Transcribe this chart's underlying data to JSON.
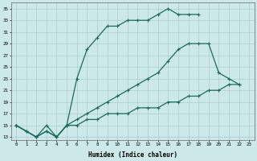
{
  "line1_x": [
    0,
    1,
    2,
    3,
    4,
    5,
    6,
    7,
    8,
    9,
    10,
    11,
    12,
    13,
    14,
    15,
    16,
    17,
    18
  ],
  "line1_y": [
    15,
    14,
    13,
    15,
    13,
    15,
    23,
    28,
    30,
    32,
    32,
    33,
    33,
    33,
    34,
    35,
    34,
    34,
    34
  ],
  "line2_x": [
    0,
    1,
    2,
    3,
    4,
    5,
    6,
    7,
    8,
    9,
    10,
    11,
    12,
    13,
    14,
    15,
    16,
    17,
    18,
    19,
    20,
    21,
    22
  ],
  "line2_y": [
    15,
    14,
    13,
    14,
    13,
    15,
    15,
    16,
    16,
    17,
    17,
    17,
    18,
    18,
    18,
    19,
    19,
    20,
    20,
    21,
    21,
    22,
    22
  ],
  "line3_x": [
    0,
    1,
    2,
    3,
    4,
    5,
    6,
    7,
    8,
    9,
    10,
    11,
    12,
    13,
    14,
    15,
    16,
    17,
    18,
    19,
    20,
    21,
    22
  ],
  "line3_y": [
    15,
    14,
    13,
    14,
    13,
    15,
    16,
    17,
    18,
    19,
    20,
    21,
    22,
    23,
    24,
    26,
    28,
    29,
    29,
    29,
    24,
    23,
    22
  ],
  "line_color": "#1a6b5a",
  "bg_color": "#cce8e8",
  "grid_color": "#aacece",
  "xlabel": "Humidex (Indice chaleur)",
  "xlim_min": -0.5,
  "xlim_max": 23.5,
  "ylim_min": 12.5,
  "ylim_max": 36,
  "yticks": [
    13,
    15,
    17,
    19,
    21,
    23,
    25,
    27,
    29,
    31,
    33,
    35
  ],
  "xticks": [
    0,
    1,
    2,
    3,
    4,
    5,
    6,
    7,
    8,
    9,
    10,
    11,
    12,
    13,
    14,
    15,
    16,
    17,
    18,
    19,
    20,
    21,
    22,
    23
  ],
  "marker": "+",
  "markersize": 3,
  "markeredgewidth": 0.8,
  "linewidth": 0.9,
  "xlabel_fontsize": 5.5,
  "tick_fontsize": 4.2
}
